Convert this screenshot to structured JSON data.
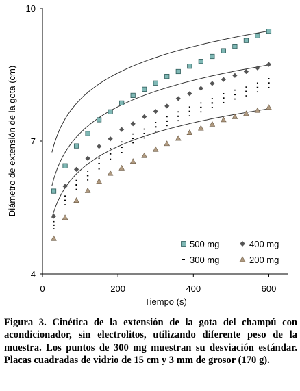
{
  "caption": "Figura 3. Cinética de la extensión de la gota del champú con acondicionador, sin electrolitos, utilizando diferente peso de la muestra. Los puntos de 300 mg muestran su desviación estándar. Placas cuadradas de vidrio de 15 cm y 3 mm de grosor (170 g).",
  "chart_data": {
    "type": "scatter",
    "xlabel": "Tiempo (s)",
    "ylabel": "Diámetro de extensión de la gota (cm)",
    "xlim": [
      0,
      650
    ],
    "ylim": [
      4,
      10
    ],
    "xticks": [
      "0",
      "200",
      "400",
      "600"
    ],
    "yticks": [
      "4",
      "7",
      "10"
    ],
    "grid": false,
    "legend_position": "bottom-right",
    "x": [
      30,
      60,
      90,
      120,
      150,
      180,
      210,
      240,
      270,
      300,
      330,
      360,
      390,
      420,
      450,
      480,
      510,
      540,
      570,
      600
    ],
    "series": [
      {
        "name": "500 mg",
        "marker": "square",
        "color": "#7fb8b5",
        "values": [
          5.87,
          6.44,
          6.89,
          7.17,
          7.48,
          7.66,
          7.86,
          8.03,
          8.17,
          8.31,
          8.46,
          8.57,
          8.69,
          8.8,
          8.91,
          9.04,
          9.14,
          9.27,
          9.38,
          9.48
        ],
        "fit": {
          "a": 3.97,
          "b": 0.862
        }
      },
      {
        "name": "400 mg",
        "marker": "diamond",
        "color": "#555555",
        "values": [
          5.3,
          5.98,
          6.36,
          6.61,
          6.88,
          7.05,
          7.26,
          7.39,
          7.55,
          7.67,
          7.79,
          7.96,
          8.07,
          8.19,
          8.3,
          8.39,
          8.48,
          8.57,
          8.65,
          8.73
        ],
        "fit": {
          "a": 3.23,
          "b": 0.858
        }
      },
      {
        "name": "300 mg",
        "marker": "dash",
        "color": "#000000",
        "values": [
          5.1,
          5.66,
          6.01,
          6.22,
          6.49,
          6.71,
          6.86,
          7.06,
          7.17,
          7.32,
          7.45,
          7.56,
          7.67,
          7.76,
          7.86,
          7.97,
          8.05,
          8.12,
          8.21,
          8.31
        ],
        "error": [
          0.08,
          0.1,
          0.1,
          0.1,
          0.12,
          0.12,
          0.12,
          0.1,
          0.1,
          0.1,
          0.1,
          0.1,
          0.1,
          0.1,
          0.1,
          0.1,
          0.1,
          0.1,
          0.1,
          0.1
        ]
      },
      {
        "name": "200 mg",
        "marker": "triangle",
        "color": "#b09a80",
        "values": [
          4.8,
          5.27,
          5.66,
          5.88,
          6.09,
          6.27,
          6.39,
          6.54,
          6.67,
          6.81,
          6.94,
          7.06,
          7.19,
          7.29,
          7.38,
          7.48,
          7.55,
          7.62,
          7.69,
          7.76
        ],
        "fit": {
          "a": 2.77,
          "b": 0.775
        }
      }
    ]
  }
}
